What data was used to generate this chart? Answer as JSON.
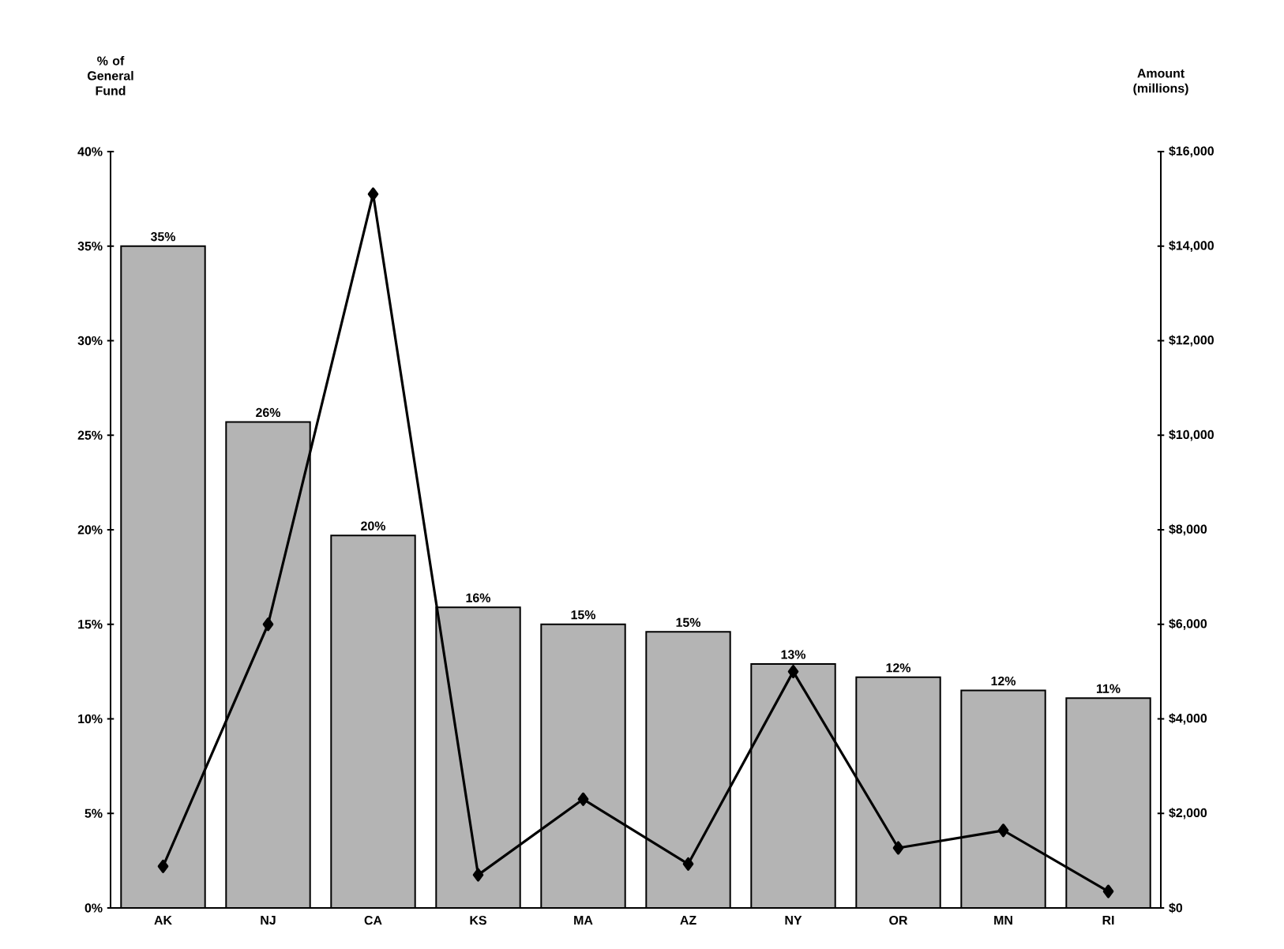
{
  "chart_data": {
    "type": "bar",
    "ylabel": "% of General Fund",
    "y2label": "Amount (millions)",
    "categories": [
      "AK",
      "NJ",
      "CA",
      "KS",
      "MA",
      "AZ",
      "NY",
      "OR",
      "MN",
      "RI"
    ],
    "series": [
      {
        "color": "#b4b4b4",
        "values": [
          35.0,
          25.7,
          19.7,
          15.9,
          15.0,
          14.6,
          12.9,
          12.2,
          11.5,
          11.1
        ],
        "value_labels": [
          "35%",
          "26%",
          "20%",
          "16%",
          "15%",
          "15%",
          "13%",
          "12%",
          "12%",
          "11%"
        ]
      },
      {
        "type": "line",
        "axis": "y2",
        "color": "#000000",
        "marker": "diamond",
        "line_style": "solid",
        "values": [
          880,
          6000,
          15100,
          700,
          2300,
          930,
          5000,
          1270,
          1640,
          350
        ]
      }
    ],
    "ylim": [
      0,
      40
    ],
    "yticks": [
      {
        "value": 0,
        "label": "0%"
      },
      {
        "value": 5,
        "label": "5%"
      },
      {
        "value": 10,
        "label": "10%"
      },
      {
        "value": 15,
        "label": "15%"
      },
      {
        "value": 20,
        "label": "20%"
      },
      {
        "value": 25,
        "label": "25%"
      },
      {
        "value": 30,
        "label": "30%"
      },
      {
        "value": 35,
        "label": "35%"
      },
      {
        "value": 40,
        "label": "40%"
      }
    ],
    "y2lim": [
      0,
      16000
    ],
    "y2ticks": [
      {
        "value": 0,
        "label": "$0"
      },
      {
        "value": 2000,
        "label": "$2,000"
      },
      {
        "value": 4000,
        "label": "$4,000"
      },
      {
        "value": 6000,
        "label": "$6,000"
      },
      {
        "value": 8000,
        "label": "$8,000"
      },
      {
        "value": 10000,
        "label": "$10,000"
      },
      {
        "value": 12000,
        "label": "$12,000"
      },
      {
        "value": 14000,
        "label": "$14,000"
      },
      {
        "value": 16000,
        "label": "$16,000"
      }
    ],
    "grid": false
  }
}
